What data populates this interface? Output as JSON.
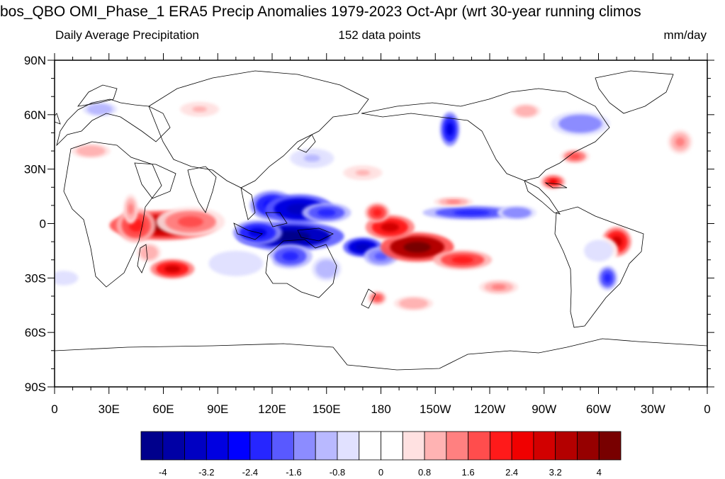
{
  "figure": {
    "title": "bos_QBO OMI_Phase_1 ERA5 Precip Anomalies 1979-2023 Oct-Apr (wrt 30-year running climos",
    "subtitle_left": "Daily Average Precipitation",
    "subtitle_center": "152 data points",
    "subtitle_right": "mm/day"
  },
  "map": {
    "lat_labels": [
      "90N",
      "60N",
      "30N",
      "0",
      "30S",
      "60S",
      "90S"
    ],
    "lon_labels": [
      "0",
      "30E",
      "60E",
      "90E",
      "120E",
      "150E",
      "180",
      "150W",
      "120W",
      "90W",
      "60W",
      "30W",
      "0"
    ],
    "land_color": "#ffffff",
    "coast_color": "#000000",
    "anomalies": [
      {
        "lon": 60,
        "lat": -1,
        "value": 3.6,
        "rx": 22,
        "ry": 6
      },
      {
        "lon": 45,
        "lat": -1,
        "value": 2.2,
        "rx": 8,
        "ry": 7
      },
      {
        "lon": 75,
        "lat": 1,
        "value": 1.6,
        "rx": 14,
        "ry": 6
      },
      {
        "lon": 42,
        "lat": 8,
        "value": 1.2,
        "rx": 3,
        "ry": 6
      },
      {
        "lon": 65,
        "lat": -25,
        "value": 2.8,
        "rx": 9,
        "ry": 4
      },
      {
        "lon": 52,
        "lat": -16,
        "value": 1.0,
        "rx": 5,
        "ry": 4
      },
      {
        "lon": 120,
        "lat": 10,
        "value": -2.8,
        "rx": 9,
        "ry": 6
      },
      {
        "lon": 135,
        "lat": 8,
        "value": -3.6,
        "rx": 14,
        "ry": 6
      },
      {
        "lon": 150,
        "lat": 6,
        "value": -2.4,
        "rx": 10,
        "ry": 4
      },
      {
        "lon": 130,
        "lat": -7,
        "value": -4.2,
        "rx": 22,
        "ry": 6
      },
      {
        "lon": 112,
        "lat": -5,
        "value": -3.0,
        "rx": 10,
        "ry": 5
      },
      {
        "lon": 130,
        "lat": -18,
        "value": -2.2,
        "rx": 9,
        "ry": 5
      },
      {
        "lon": 170,
        "lat": -13,
        "value": -3.6,
        "rx": 8,
        "ry": 4
      },
      {
        "lon": 180,
        "lat": -18,
        "value": -2.0,
        "rx": 7,
        "ry": 4
      },
      {
        "lon": 150,
        "lat": -25,
        "value": -1.2,
        "rx": 6,
        "ry": 5
      },
      {
        "lon": 100,
        "lat": -22,
        "value": -0.8,
        "rx": 15,
        "ry": 7
      },
      {
        "lon": 200,
        "lat": -13,
        "value": 4.2,
        "rx": 15,
        "ry": 6
      },
      {
        "lon": 185,
        "lat": -2,
        "value": 2.8,
        "rx": 10,
        "ry": 5
      },
      {
        "lon": 178,
        "lat": 6,
        "value": 2.0,
        "rx": 5,
        "ry": 4
      },
      {
        "lon": 225,
        "lat": -20,
        "value": 2.0,
        "rx": 12,
        "ry": 4
      },
      {
        "lon": 245,
        "lat": -35,
        "value": 1.4,
        "rx": 8,
        "ry": 3
      },
      {
        "lon": 230,
        "lat": 6,
        "value": -2.4,
        "rx": 20,
        "ry": 3
      },
      {
        "lon": 255,
        "lat": 6,
        "value": -1.6,
        "rx": 8,
        "ry": 3
      },
      {
        "lon": 220,
        "lat": 12,
        "value": 1.4,
        "rx": 8,
        "ry": 2
      },
      {
        "lon": 218,
        "lat": 52,
        "value": -3.0,
        "rx": 4,
        "ry": 7
      },
      {
        "lon": 290,
        "lat": 55,
        "value": -1.6,
        "rx": 12,
        "ry": 5
      },
      {
        "lon": 275,
        "lat": 23,
        "value": 2.4,
        "rx": 5,
        "ry": 3
      },
      {
        "lon": 287,
        "lat": 37,
        "value": 1.6,
        "rx": 6,
        "ry": 3
      },
      {
        "lon": 310,
        "lat": -10,
        "value": 2.8,
        "rx": 6,
        "ry": 6
      },
      {
        "lon": 305,
        "lat": -30,
        "value": -2.4,
        "rx": 4,
        "ry": 5
      },
      {
        "lon": 300,
        "lat": -15,
        "value": -0.8,
        "rx": 8,
        "ry": 6
      },
      {
        "lon": 178,
        "lat": -41,
        "value": 1.6,
        "rx": 4,
        "ry": 3
      },
      {
        "lon": 198,
        "lat": -44,
        "value": 1.0,
        "rx": 8,
        "ry": 3
      },
      {
        "lon": 142,
        "lat": 36,
        "value": -1.0,
        "rx": 9,
        "ry": 4
      },
      {
        "lon": 25,
        "lat": 63,
        "value": -1.2,
        "rx": 7,
        "ry": 3
      },
      {
        "lon": 80,
        "lat": 63,
        "value": 0.9,
        "rx": 8,
        "ry": 3
      },
      {
        "lon": 260,
        "lat": 62,
        "value": 1.0,
        "rx": 6,
        "ry": 3
      },
      {
        "lon": 345,
        "lat": 45,
        "value": 1.2,
        "rx": 5,
        "ry": 5
      },
      {
        "lon": 20,
        "lat": 40,
        "value": 1.0,
        "rx": 8,
        "ry": 3
      },
      {
        "lon": 170,
        "lat": 28,
        "value": 0.9,
        "rx": 8,
        "ry": 3
      },
      {
        "lon": 5,
        "lat": -30,
        "value": -0.8,
        "rx": 8,
        "ry": 4
      }
    ]
  },
  "colorbar": {
    "colors": [
      "#00008c",
      "#0000a5",
      "#0000c3",
      "#0000e1",
      "#0000ff",
      "#2626ff",
      "#5959ff",
      "#8c8cff",
      "#b9b9ff",
      "#e1e1ff",
      "#ffffff",
      "#ffffff",
      "#ffe1e1",
      "#ffb3b3",
      "#ff8080",
      "#ff4d4d",
      "#ff1a1a",
      "#f00000",
      "#d20000",
      "#b40000",
      "#960000",
      "#780000"
    ],
    "labels": [
      {
        "text": "-4",
        "value": -4
      },
      {
        "text": "-3.2",
        "value": -3.2
      },
      {
        "text": "-2.4",
        "value": -2.4
      },
      {
        "text": "-1.6",
        "value": -1.6
      },
      {
        "text": "-0.8",
        "value": -0.8
      },
      {
        "text": "0",
        "value": 0
      },
      {
        "text": "0.8",
        "value": 0.8
      },
      {
        "text": "1.6",
        "value": 1.6
      },
      {
        "text": "2.4",
        "value": 2.4
      },
      {
        "text": "3.2",
        "value": 3.2
      },
      {
        "text": "4",
        "value": 4
      }
    ]
  }
}
